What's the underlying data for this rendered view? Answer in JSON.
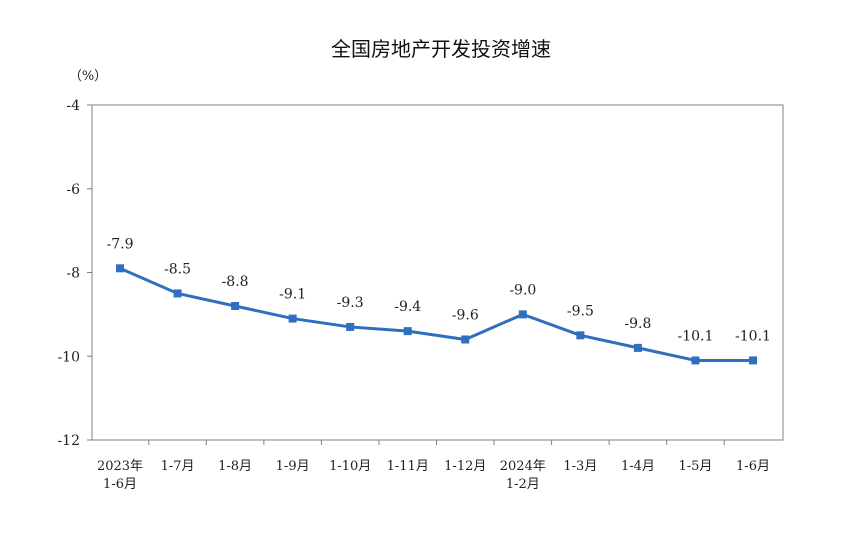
{
  "chart_data": {
    "type": "line",
    "title": "全国房地产开发投资增速",
    "ylabel": "（%）",
    "xlabel": "",
    "ylim": [
      -12,
      -4
    ],
    "yticks": [
      "-4",
      "-6",
      "-8",
      "-10",
      "-12"
    ],
    "ytick_values": [
      -4,
      -6,
      -8,
      -10,
      -12
    ],
    "grid": false,
    "legend": "none",
    "categories": [
      [
        "2023年",
        "1-6月"
      ],
      [
        "1-7月"
      ],
      [
        "1-8月"
      ],
      [
        "1-9月"
      ],
      [
        "1-10月"
      ],
      [
        "1-11月"
      ],
      [
        "1-12月"
      ],
      [
        "2024年",
        "1-2月"
      ],
      [
        "1-3月"
      ],
      [
        "1-4月"
      ],
      [
        "1-5月"
      ],
      [
        "1-6月"
      ]
    ],
    "series": [
      {
        "values": [
          -7.9,
          -8.5,
          -8.8,
          -9.1,
          -9.3,
          -9.4,
          -9.6,
          -9.0,
          -9.5,
          -9.8,
          -10.1,
          -10.1
        ],
        "labels": [
          "-7.9",
          "-8.5",
          "-8.8",
          "-9.1",
          "-9.3",
          "-9.4",
          "-9.6",
          "-9.0",
          "-9.5",
          "-9.8",
          "-10.1",
          "-10.1"
        ],
        "color": "#2e6fbf"
      }
    ],
    "colors": {
      "line": "#2e6fbf",
      "axis": "#808080"
    }
  }
}
